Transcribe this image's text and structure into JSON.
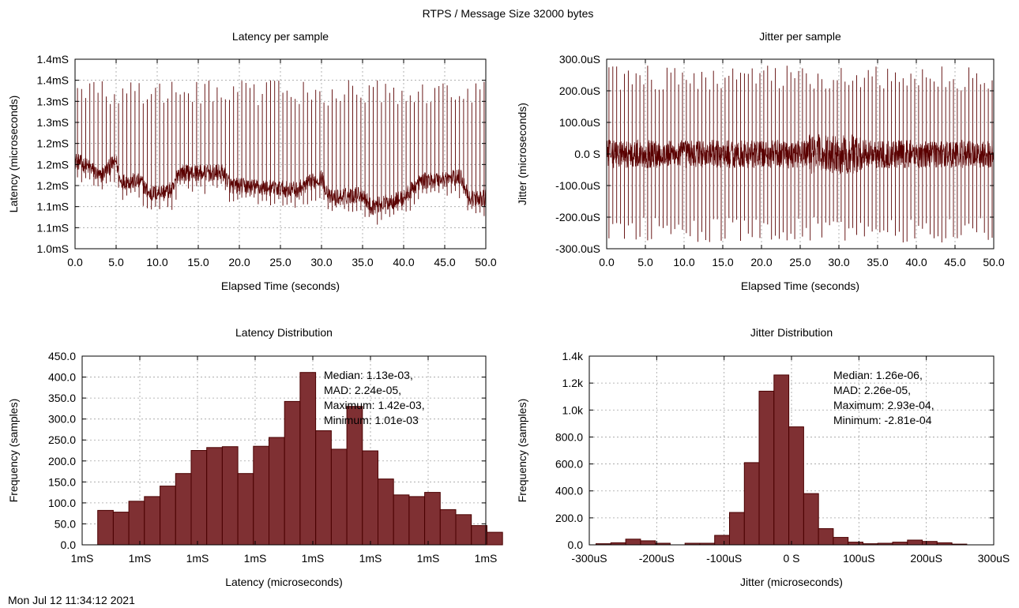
{
  "title": "RTPS / Message Size 32000 bytes",
  "timestamp": "Mon Jul 12 11:34:12 2021",
  "colors": {
    "series": "#5a0000",
    "bar_fill": "#7f3033",
    "bar_edge": "#4a0000",
    "grid": "#a0a0a0"
  },
  "chart_data": [
    {
      "id": "latency_per_sample",
      "type": "line",
      "title": "Latency per sample",
      "xlabel": "Elapsed Time (seconds)",
      "ylabel": "Latency (microseconds)",
      "xlim": [
        0,
        50
      ],
      "ylim": [
        1.0,
        1.45
      ],
      "x_ticks": [
        0,
        5,
        10,
        15,
        20,
        25,
        30,
        35,
        40,
        45,
        50
      ],
      "x_tick_labels": [
        "0.0",
        "5.0",
        "10.0",
        "15.0",
        "20.0",
        "25.0",
        "30.0",
        "35.0",
        "40.0",
        "45.0",
        "50.0"
      ],
      "y_ticks": [
        1.0,
        1.05,
        1.1,
        1.15,
        1.2,
        1.25,
        1.3,
        1.35,
        1.4,
        1.45
      ],
      "y_tick_labels": [
        "1.0mS",
        "1.1mS",
        "1.1mS",
        "1.2mS",
        "1.2mS",
        "1.2mS",
        "1.3mS",
        "1.3mS",
        "1.4mS",
        "1.4mS"
      ],
      "grid": true,
      "baseline": [
        [
          0,
          1.21
        ],
        [
          2,
          1.19
        ],
        [
          3,
          1.17
        ],
        [
          5,
          1.21
        ],
        [
          5.5,
          1.16
        ],
        [
          8,
          1.16
        ],
        [
          9,
          1.13
        ],
        [
          12,
          1.14
        ],
        [
          12.5,
          1.18
        ],
        [
          18,
          1.18
        ],
        [
          19,
          1.15
        ],
        [
          27,
          1.14
        ],
        [
          28,
          1.15
        ],
        [
          30,
          1.17
        ],
        [
          31,
          1.12
        ],
        [
          35,
          1.13
        ],
        [
          36,
          1.1
        ],
        [
          40,
          1.12
        ],
        [
          42,
          1.16
        ],
        [
          47,
          1.17
        ],
        [
          48,
          1.12
        ],
        [
          50,
          1.12
        ]
      ],
      "spike_interval_s": 0.5,
      "spike_high": 1.37,
      "spike_low": 1.06
    },
    {
      "id": "jitter_per_sample",
      "type": "line",
      "title": "Jitter per sample",
      "xlabel": "Elapsed Time (seconds)",
      "ylabel": "Jitter (microseconds)",
      "xlim": [
        0,
        50
      ],
      "ylim": [
        -300,
        300
      ],
      "x_ticks": [
        0,
        5,
        10,
        15,
        20,
        25,
        30,
        35,
        40,
        45,
        50
      ],
      "x_tick_labels": [
        "0.0",
        "5.0",
        "10.0",
        "15.0",
        "20.0",
        "25.0",
        "30.0",
        "35.0",
        "40.0",
        "45.0",
        "50.0"
      ],
      "y_ticks": [
        -300,
        -200,
        -100,
        0,
        100,
        200,
        300
      ],
      "y_tick_labels": [
        "-300.0uS",
        "-200.0uS",
        "-100.0uS",
        "0.0 S",
        "100.0uS",
        "200.0uS",
        "300.0uS"
      ],
      "grid": true,
      "noise_band": 45,
      "spike_interval_s": 0.5,
      "spike_high": 240,
      "spike_low": -240
    },
    {
      "id": "latency_distribution",
      "type": "bar",
      "title": "Latency Distribution",
      "xlabel": "Latency (microseconds)",
      "ylabel": "Frequency (samples)",
      "xlim": [
        0,
        7
      ],
      "ylim": [
        0,
        450
      ],
      "x_ticks": [
        0,
        1,
        2,
        3,
        4,
        5,
        6,
        7
      ],
      "x_tick_labels": [
        "1mS",
        "1mS",
        "1mS",
        "1mS",
        "1mS",
        "1mS",
        "1mS",
        "1mS"
      ],
      "y_ticks": [
        0,
        50,
        100,
        150,
        200,
        250,
        300,
        350,
        400,
        450
      ],
      "y_tick_labels": [
        "0.0",
        "50.0",
        "100.0",
        "150.0",
        "200.0",
        "250.0",
        "300.0",
        "350.0",
        "400.0",
        "450.0"
      ],
      "grid": true,
      "bin_start": 0.27,
      "bin_width": 0.27,
      "values": [
        82,
        78,
        104,
        115,
        140,
        170,
        225,
        232,
        234,
        170,
        235,
        256,
        342,
        411,
        272,
        228,
        330,
        224,
        157,
        119,
        115,
        125,
        84,
        72,
        46,
        30
      ],
      "stats": [
        "Median: 1.13e-03,",
        "MAD: 2.24e-05,",
        "Maximum: 1.42e-03,",
        "Minimum: 1.01e-03"
      ]
    },
    {
      "id": "jitter_distribution",
      "type": "bar",
      "title": "Jitter Distribution",
      "xlabel": "Jitter (microseconds)",
      "ylabel": "Frequency (samples)",
      "xlim": [
        -300,
        300
      ],
      "ylim": [
        0,
        1400
      ],
      "x_ticks": [
        -300,
        -200,
        -100,
        0,
        100,
        200,
        300
      ],
      "x_tick_labels": [
        "-300uS",
        "-200uS",
        "-100uS",
        "0 S",
        "100uS",
        "200uS",
        "300uS"
      ],
      "y_ticks": [
        0,
        200,
        400,
        600,
        800,
        1000,
        1200,
        1400
      ],
      "y_tick_labels": [
        "0.0",
        "200.0",
        "400.0",
        "600.0",
        "800.0",
        "1.0k",
        "1.2k",
        "1.4k"
      ],
      "grid": true,
      "bin_start": -290,
      "bin_width": 22,
      "values": [
        8,
        15,
        42,
        30,
        12,
        0,
        12,
        12,
        70,
        240,
        610,
        1140,
        1260,
        875,
        380,
        120,
        55,
        20,
        8,
        12,
        20,
        35,
        25,
        15,
        5
      ],
      "stats": [
        "Median: 1.26e-06,",
        "MAD: 2.26e-05,",
        "Maximum: 2.93e-04,",
        "Minimum: -2.81e-04"
      ]
    }
  ]
}
